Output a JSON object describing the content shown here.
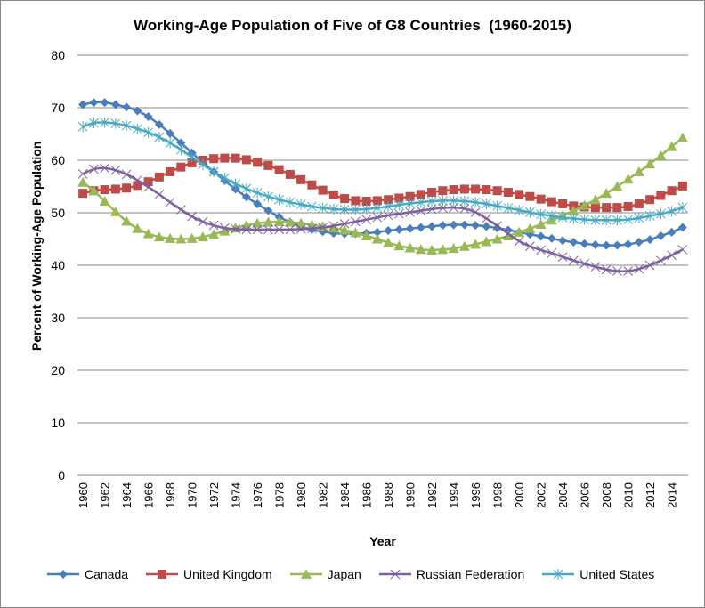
{
  "chart_data": {
    "type": "line",
    "title": "Working-Age Population of Five of G8 Countries  (1960-2015)",
    "xlabel": "Year",
    "ylabel": "Percent of Working-Age Population",
    "ylim": [
      0,
      80
    ],
    "yticks": [
      "0",
      "10",
      "20",
      "30",
      "40",
      "50",
      "60",
      "70",
      "80"
    ],
    "grid": true,
    "legend_position": "bottom",
    "x_start": 1960,
    "x_end": 2015,
    "xtick_labels": [
      "1960",
      "1962",
      "1964",
      "1966",
      "1968",
      "1970",
      "1972",
      "1974",
      "1976",
      "1978",
      "1980",
      "1982",
      "1984",
      "1986",
      "1988",
      "1990",
      "1992",
      "1994",
      "1996",
      "1998",
      "2000",
      "2002",
      "2004",
      "2006",
      "2008",
      "2010",
      "2012",
      "2014"
    ],
    "series": [
      {
        "name": "Canada",
        "color": "#4a7ebb",
        "marker": "diamond",
        "values": [
          70.6,
          71,
          71,
          70.6,
          70.1,
          69.4,
          68.3,
          66.8,
          65.1,
          63.3,
          61.4,
          59.6,
          57.8,
          56.1,
          54.5,
          53,
          51.7,
          50.4,
          49.2,
          48.2,
          47.4,
          46.8,
          46.4,
          46.1,
          46,
          46,
          46.1,
          46.3,
          46.6,
          46.8,
          47,
          47.2,
          47.4,
          47.6,
          47.7,
          47.7,
          47.6,
          47.4,
          47.1,
          46.7,
          46.3,
          45.9,
          45.5,
          45.1,
          44.7,
          44.4,
          44.1,
          43.9,
          43.8,
          43.8,
          44,
          44.4,
          44.9,
          45.6,
          46.3,
          47.2
        ]
      },
      {
        "name": "United Kingdom",
        "color": "#be4b48",
        "marker": "square",
        "values": [
          53.7,
          54.2,
          54.4,
          54.5,
          54.7,
          55.2,
          55.9,
          56.8,
          57.8,
          58.7,
          59.5,
          60,
          60.3,
          60.4,
          60.4,
          60.1,
          59.6,
          59,
          58.2,
          57.3,
          56.3,
          55.3,
          54.3,
          53.4,
          52.7,
          52.3,
          52.2,
          52.3,
          52.5,
          52.8,
          53.1,
          53.5,
          53.9,
          54.2,
          54.4,
          54.5,
          54.5,
          54.4,
          54.2,
          53.9,
          53.5,
          53.1,
          52.6,
          52.1,
          51.7,
          51.3,
          51.1,
          51,
          51,
          51,
          51.2,
          51.7,
          52.5,
          53.3,
          54.2,
          55.1
        ]
      },
      {
        "name": "Japan",
        "color": "#98b954",
        "marker": "triangle",
        "values": [
          55.8,
          54.2,
          52.2,
          50.2,
          48.4,
          47,
          46,
          45.4,
          45.1,
          45,
          45.1,
          45.4,
          45.9,
          46.5,
          47.1,
          47.6,
          48,
          48.2,
          48.3,
          48.2,
          48,
          47.7,
          47.4,
          47.1,
          46.7,
          46.2,
          45.6,
          45,
          44.3,
          43.7,
          43.3,
          43,
          42.9,
          43,
          43.2,
          43.6,
          44,
          44.5,
          45,
          45.6,
          46.3,
          47,
          47.8,
          48.6,
          49.5,
          50.4,
          51.4,
          52.5,
          53.7,
          55,
          56.4,
          57.8,
          59.3,
          60.9,
          62.6,
          64.3
        ]
      },
      {
        "name": "Russian Federation",
        "color": "#7d60a0",
        "marker": "x",
        "values": [
          57.4,
          58.3,
          58.5,
          58.1,
          57.3,
          56.2,
          54.9,
          53.5,
          52,
          50.6,
          49.3,
          48.3,
          47.6,
          47.1,
          46.9,
          46.8,
          46.8,
          46.8,
          46.8,
          46.8,
          46.9,
          47,
          47.2,
          47.5,
          47.9,
          48.3,
          48.7,
          49.1,
          49.5,
          49.8,
          50.1,
          50.4,
          50.7,
          50.9,
          51,
          50.8,
          50.1,
          48.9,
          47.5,
          46,
          44.6,
          43.6,
          42.9,
          42.3,
          41.6,
          40.9,
          40.3,
          39.7,
          39.2,
          38.9,
          38.9,
          39.3,
          40,
          40.9,
          41.9,
          43
        ]
      },
      {
        "name": "United States",
        "color": "#46aac5",
        "marker": "star",
        "values": [
          66.4,
          67.1,
          67.2,
          67,
          66.6,
          66,
          65.3,
          64.4,
          63.3,
          62,
          60.6,
          59.2,
          57.8,
          56.6,
          55.5,
          54.6,
          53.8,
          53.1,
          52.5,
          52,
          51.6,
          51.2,
          50.9,
          50.7,
          50.6,
          50.6,
          50.7,
          50.9,
          51.2,
          51.5,
          51.8,
          52,
          52.2,
          52.3,
          52.3,
          52.2,
          52,
          51.7,
          51.3,
          50.9,
          50.5,
          50.1,
          49.7,
          49.4,
          49.1,
          48.9,
          48.7,
          48.6,
          48.6,
          48.6,
          48.7,
          49,
          49.4,
          49.8,
          50.3,
          51
        ]
      }
    ]
  }
}
